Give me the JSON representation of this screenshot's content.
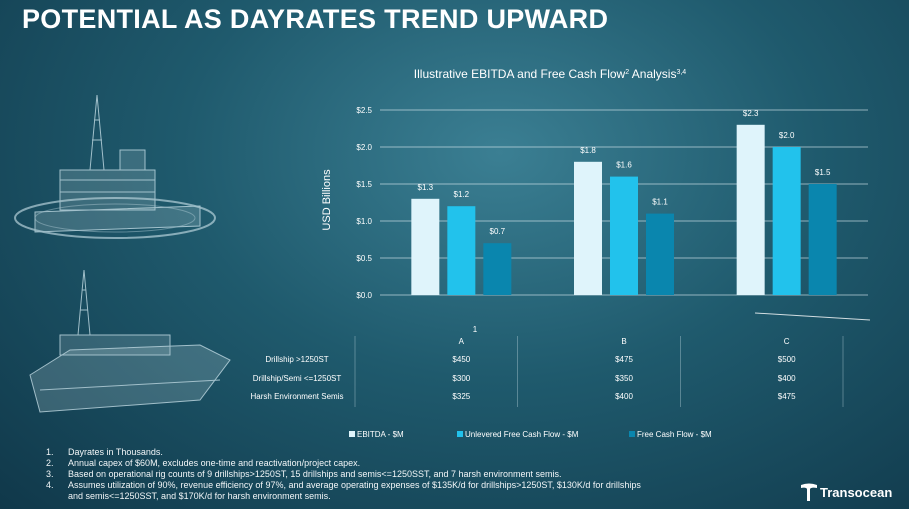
{
  "slide": {
    "title": "POTENTIAL AS DAYRATES TREND UPWARD",
    "logo_text": "Transocean"
  },
  "chart_data": {
    "type": "bar",
    "title": "Illustrative EBITDA and Free Cash Flow",
    "title_superscript": "2",
    "title_suffix": " Analysis",
    "title_suffix_superscript": "3,4",
    "ylabel": "USD Billions",
    "ylim": [
      0,
      2.5
    ],
    "yticks": [
      "$0.0",
      "$0.5",
      "$1.0",
      "$1.5",
      "$2.0",
      "$2.5"
    ],
    "grid": true,
    "categories": [
      "A",
      "B",
      "C"
    ],
    "category_row_label": "1",
    "series": [
      {
        "name": "EBITDA - $M",
        "color": "#dff4fb",
        "values": [
          1.3,
          1.8,
          2.3
        ],
        "labels": [
          "$1.3",
          "$1.8",
          "$2.3"
        ]
      },
      {
        "name": "Unlevered Free Cash Flow - $M",
        "color": "#22c2ec",
        "values": [
          1.2,
          1.6,
          2.0
        ],
        "labels": [
          "$1.2",
          "$1.6",
          "$2.0"
        ]
      },
      {
        "name": "Free Cash Flow - $M",
        "color": "#0a86ae",
        "values": [
          0.7,
          1.1,
          1.5
        ],
        "labels": [
          "$0.7",
          "$1.1",
          "$1.5"
        ]
      }
    ],
    "table": {
      "rows": [
        {
          "label": "Drillship >1250ST",
          "values": [
            "$450",
            "$475",
            "$500"
          ]
        },
        {
          "label": "Drillship/Semi <=1250ST",
          "values": [
            "$300",
            "$350",
            "$400"
          ]
        },
        {
          "label": "Harsh Environment Semis",
          "values": [
            "$325",
            "$400",
            "$475"
          ]
        }
      ]
    },
    "legend_position": "bottom"
  },
  "footnotes": [
    {
      "num": "1.",
      "text": "Dayrates in Thousands."
    },
    {
      "num": "2.",
      "text": "Annual capex of $60M, excludes one-time and reactivation/project capex."
    },
    {
      "num": "3.",
      "text": "Based on operational rig counts of 9 drillships>1250ST, 15 drillships and semis<=1250SST, and 7 harsh environment semis."
    },
    {
      "num": "4.",
      "text": "Assumes utilization of 90%, revenue efficiency of 97%, and average operating expenses of $135K/d for drillships>1250ST, $130K/d for drillships and semis<=1250SST, and $170K/d for harsh environment semis."
    }
  ]
}
